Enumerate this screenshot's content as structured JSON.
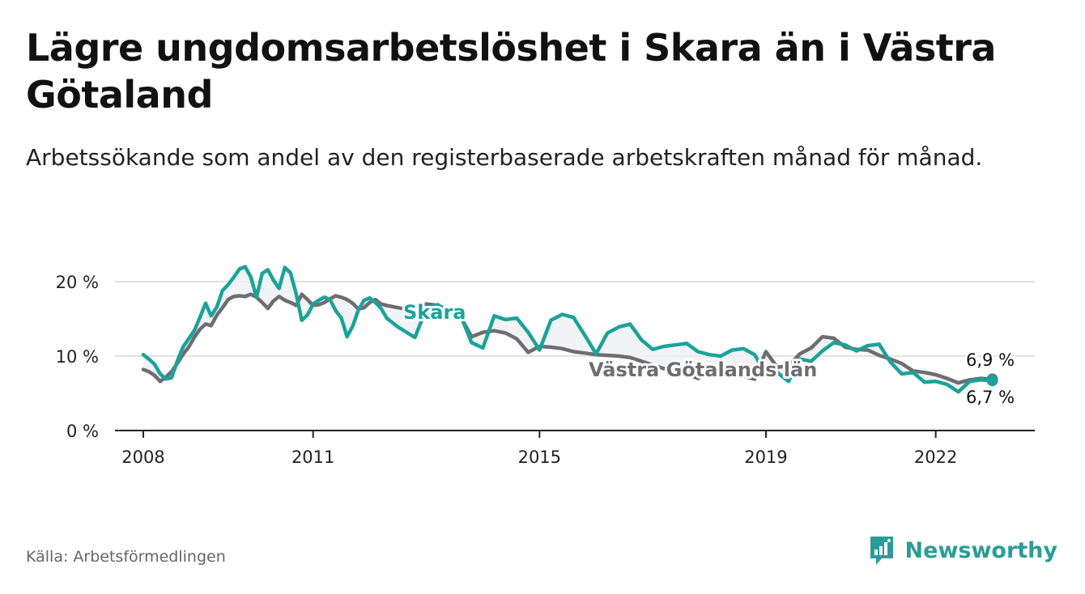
{
  "title": "Lägre ungdomsarbetslöshet i Skara än i Västra Götaland",
  "subtitle": "Arbetssökande som andel av den registerbaserade arbetskraften månad för månad.",
  "source": "Källa: Arbetsförmedlingen",
  "brand": "Newsworthy",
  "colors": {
    "skara": "#1ba39a",
    "region": "#6f6c72",
    "grid": "#d9d9d9",
    "axis": "#222222",
    "brand": "#2a9d97"
  },
  "chart_data": {
    "type": "line",
    "title": "Lägre ungdomsarbetslöshet i Skara än i Västra Götaland",
    "xlabel": "",
    "ylabel": "",
    "xlim": [
      2007.5,
      2023.75
    ],
    "ylim": [
      0,
      20
    ],
    "yticks": [
      0,
      10,
      20
    ],
    "ytick_labels": [
      "0 %",
      "10 %",
      "20 %"
    ],
    "xticks": [
      2008,
      2011,
      2015,
      2019,
      2022
    ],
    "xtick_labels": [
      "2008",
      "2011",
      "2015",
      "2019",
      "2022"
    ],
    "grid": true,
    "series": [
      {
        "name": "Skara",
        "label": "Skara",
        "color": "#1ba39a",
        "end_label": "6,7 %",
        "x": [
          2008.0,
          2008.1,
          2008.2,
          2008.3,
          2008.4,
          2008.5,
          2008.6,
          2008.7,
          2008.8,
          2008.9,
          2009.0,
          2009.1,
          2009.2,
          2009.3,
          2009.4,
          2009.5,
          2009.6,
          2009.7,
          2009.8,
          2009.9,
          2010.0,
          2010.1,
          2010.2,
          2010.3,
          2010.4,
          2010.5,
          2010.6,
          2010.7,
          2010.8,
          2010.9,
          2011.0,
          2011.1,
          2011.2,
          2011.3,
          2011.4,
          2011.5,
          2011.6,
          2011.7,
          2011.8,
          2011.9,
          2012.0,
          2012.1,
          2012.2,
          2012.3,
          2012.5,
          2012.8,
          2013.0,
          2013.2,
          2013.4,
          2013.6,
          2013.8,
          2014.0,
          2014.2,
          2014.4,
          2014.6,
          2014.8,
          2015.0,
          2015.2,
          2015.4,
          2015.6,
          2015.8,
          2016.0,
          2016.2,
          2016.4,
          2016.6,
          2016.8,
          2017.0,
          2017.2,
          2017.4,
          2017.6,
          2017.8,
          2018.0,
          2018.2,
          2018.4,
          2018.6,
          2018.8,
          2019.0,
          2019.2,
          2019.4,
          2019.6,
          2019.8,
          2020.0,
          2020.2,
          2020.4,
          2020.6,
          2020.8,
          2021.0,
          2021.2,
          2021.4,
          2021.6,
          2021.8,
          2022.0,
          2022.2,
          2022.4,
          2022.6,
          2022.8,
          2023.0
        ],
        "y": [
          10.2,
          9.6,
          8.9,
          7.6,
          6.9,
          7.1,
          9.3,
          11.2,
          12.3,
          13.4,
          15.2,
          17.1,
          15.4,
          16.6,
          18.8,
          19.6,
          20.6,
          21.7,
          22.0,
          20.6,
          17.9,
          21.1,
          21.6,
          20.2,
          19.1,
          21.9,
          21.2,
          18.4,
          14.8,
          15.5,
          17.0,
          17.5,
          17.9,
          17.6,
          16.1,
          15.1,
          12.6,
          14.0,
          16.2,
          17.5,
          17.8,
          17.2,
          16.4,
          15.1,
          13.9,
          12.5,
          16.4,
          16.9,
          15.9,
          15.6,
          11.8,
          11.1,
          15.4,
          14.9,
          15.1,
          13.2,
          10.8,
          14.8,
          15.6,
          15.2,
          12.8,
          10.3,
          13.1,
          13.9,
          14.3,
          12.2,
          10.9,
          11.3,
          11.5,
          11.7,
          10.6,
          10.2,
          10.0,
          10.8,
          11.0,
          10.2,
          7.5,
          7.8,
          6.6,
          9.6,
          9.3,
          10.7,
          11.8,
          11.5,
          10.7,
          11.4,
          11.6,
          9.2,
          7.6,
          7.8,
          6.5,
          6.6,
          6.2,
          5.2,
          6.6,
          6.8,
          6.7
        ]
      },
      {
        "name": "Västra Götalands län",
        "label": "Västra Götalands län",
        "color": "#6f6c72",
        "end_label": "6,9 %",
        "x": [
          2008.0,
          2008.1,
          2008.2,
          2008.3,
          2008.4,
          2008.5,
          2008.6,
          2008.7,
          2008.8,
          2008.9,
          2009.0,
          2009.1,
          2009.2,
          2009.3,
          2009.4,
          2009.5,
          2009.6,
          2009.7,
          2009.8,
          2009.9,
          2010.0,
          2010.1,
          2010.2,
          2010.3,
          2010.4,
          2010.5,
          2010.6,
          2010.7,
          2010.8,
          2010.9,
          2011.0,
          2011.1,
          2011.2,
          2011.3,
          2011.4,
          2011.5,
          2011.6,
          2011.7,
          2011.8,
          2011.9,
          2012.0,
          2012.1,
          2012.2,
          2012.3,
          2012.5,
          2012.8,
          2013.0,
          2013.2,
          2013.4,
          2013.6,
          2013.8,
          2014.0,
          2014.2,
          2014.4,
          2014.6,
          2014.8,
          2015.0,
          2015.2,
          2015.4,
          2015.6,
          2015.8,
          2016.0,
          2016.2,
          2016.4,
          2016.6,
          2016.8,
          2017.0,
          2017.2,
          2017.4,
          2017.6,
          2017.8,
          2018.0,
          2018.2,
          2018.4,
          2018.6,
          2018.8,
          2019.0,
          2019.2,
          2019.4,
          2019.6,
          2019.8,
          2020.0,
          2020.2,
          2020.4,
          2020.6,
          2020.8,
          2021.0,
          2021.2,
          2021.4,
          2021.6,
          2021.8,
          2022.0,
          2022.2,
          2022.4,
          2022.6,
          2022.8,
          2023.0
        ],
        "y": [
          8.2,
          7.9,
          7.4,
          6.6,
          7.2,
          7.9,
          9.0,
          10.2,
          11.2,
          12.5,
          13.6,
          14.3,
          14.1,
          15.5,
          16.5,
          17.6,
          18.0,
          18.1,
          18.0,
          18.3,
          17.9,
          17.2,
          16.4,
          17.4,
          18.0,
          17.5,
          17.2,
          16.8,
          18.3,
          17.6,
          16.8,
          16.9,
          17.2,
          17.7,
          18.1,
          17.9,
          17.6,
          17.1,
          16.3,
          16.5,
          17.2,
          17.6,
          17.0,
          16.8,
          16.5,
          16.1,
          17.0,
          16.8,
          16.2,
          15.4,
          12.6,
          13.2,
          13.4,
          13.1,
          12.3,
          10.5,
          11.3,
          11.2,
          11.0,
          10.6,
          10.4,
          10.2,
          10.1,
          10.0,
          9.8,
          9.3,
          8.8,
          8.3,
          8.0,
          7.6,
          7.0,
          7.8,
          8.0,
          7.9,
          7.3,
          6.9,
          10.6,
          8.5,
          8.7,
          10.3,
          11.1,
          12.6,
          12.4,
          11.2,
          10.9,
          10.8,
          10.1,
          9.6,
          9.0,
          8.0,
          7.8,
          7.5,
          7.0,
          6.4,
          6.8,
          7.0,
          6.9
        ]
      }
    ]
  }
}
